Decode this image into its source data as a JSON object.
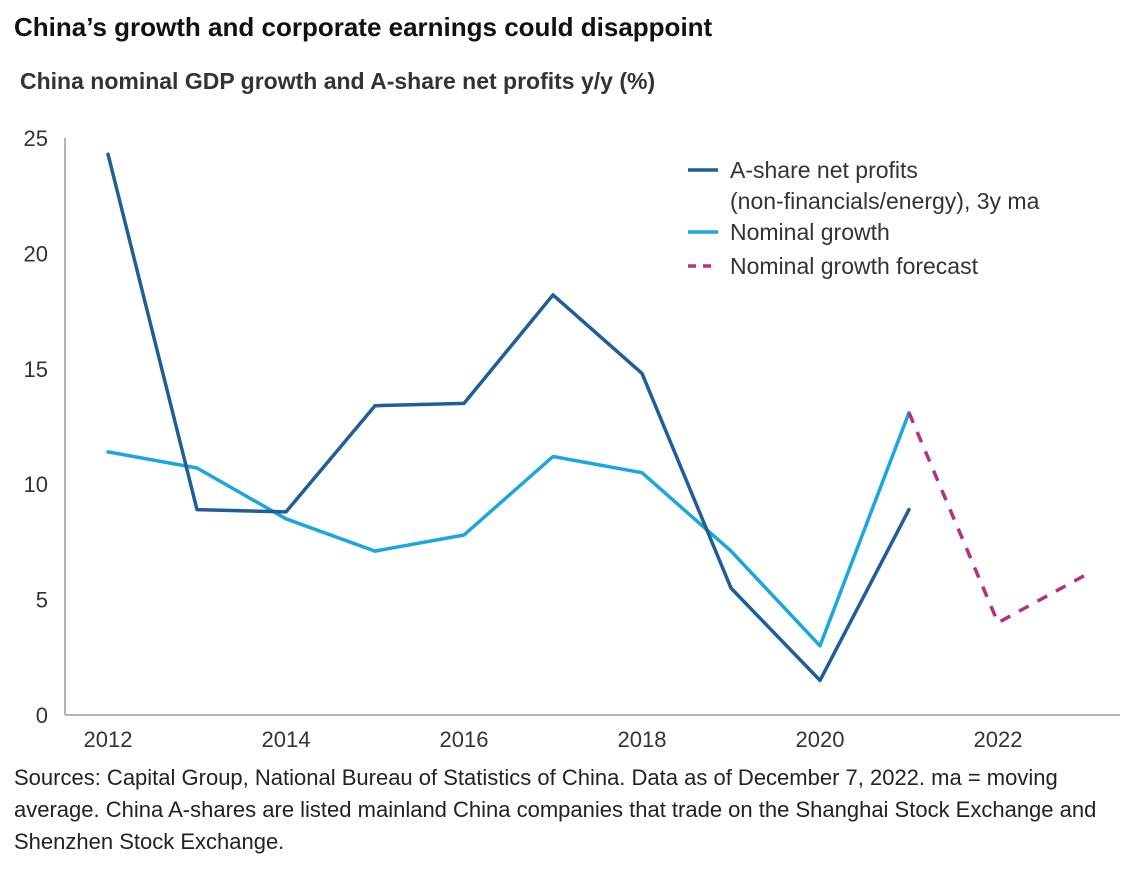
{
  "title": "China’s growth and corporate earnings could disappoint",
  "subtitle": "China nominal GDP growth and A-share net profits y/y (%)",
  "sources": "Sources: Capital Group, National Bureau of Statistics of China. Data as of December 7, 2022. ma = moving average. China A-shares are listed mainland China companies that trade on the Shanghai Stock Exchange and Shenzhen Stock Exchange.",
  "chart_data": {
    "type": "line",
    "xlim": [
      2012,
      2023
    ],
    "ylim": [
      0,
      25
    ],
    "xticks": [
      2012,
      2014,
      2016,
      2018,
      2020,
      2022
    ],
    "yticks": [
      0,
      5,
      10,
      15,
      20,
      25
    ],
    "grid": false,
    "legend_position": "top-right",
    "series": [
      {
        "name": "A-share net profits (non-financials/energy), 3y ma",
        "legend_lines": [
          "A-share net profits",
          "(non-financials/energy), 3y ma"
        ],
        "color": "#1f5e99",
        "style": "solid",
        "x": [
          2012,
          2013,
          2014,
          2015,
          2016,
          2017,
          2018,
          2019,
          2020,
          2021
        ],
        "y": [
          24.3,
          8.9,
          8.8,
          13.4,
          13.5,
          18.2,
          14.8,
          5.5,
          1.5,
          8.9
        ]
      },
      {
        "name": "Nominal growth",
        "legend_lines": [
          "Nominal growth"
        ],
        "color": "#1aa7e0",
        "style": "solid",
        "x": [
          2012,
          2013,
          2014,
          2015,
          2016,
          2017,
          2018,
          2019,
          2020,
          2021
        ],
        "y": [
          11.4,
          10.7,
          8.5,
          7.1,
          7.8,
          11.2,
          10.5,
          7.1,
          3.0,
          13.1
        ]
      },
      {
        "name": "Nominal growth forecast",
        "legend_lines": [
          "Nominal growth forecast"
        ],
        "color": "#b5307e",
        "style": "dashed",
        "x": [
          2021,
          2022,
          2023
        ],
        "y": [
          13.1,
          4.0,
          6.1
        ]
      }
    ]
  }
}
